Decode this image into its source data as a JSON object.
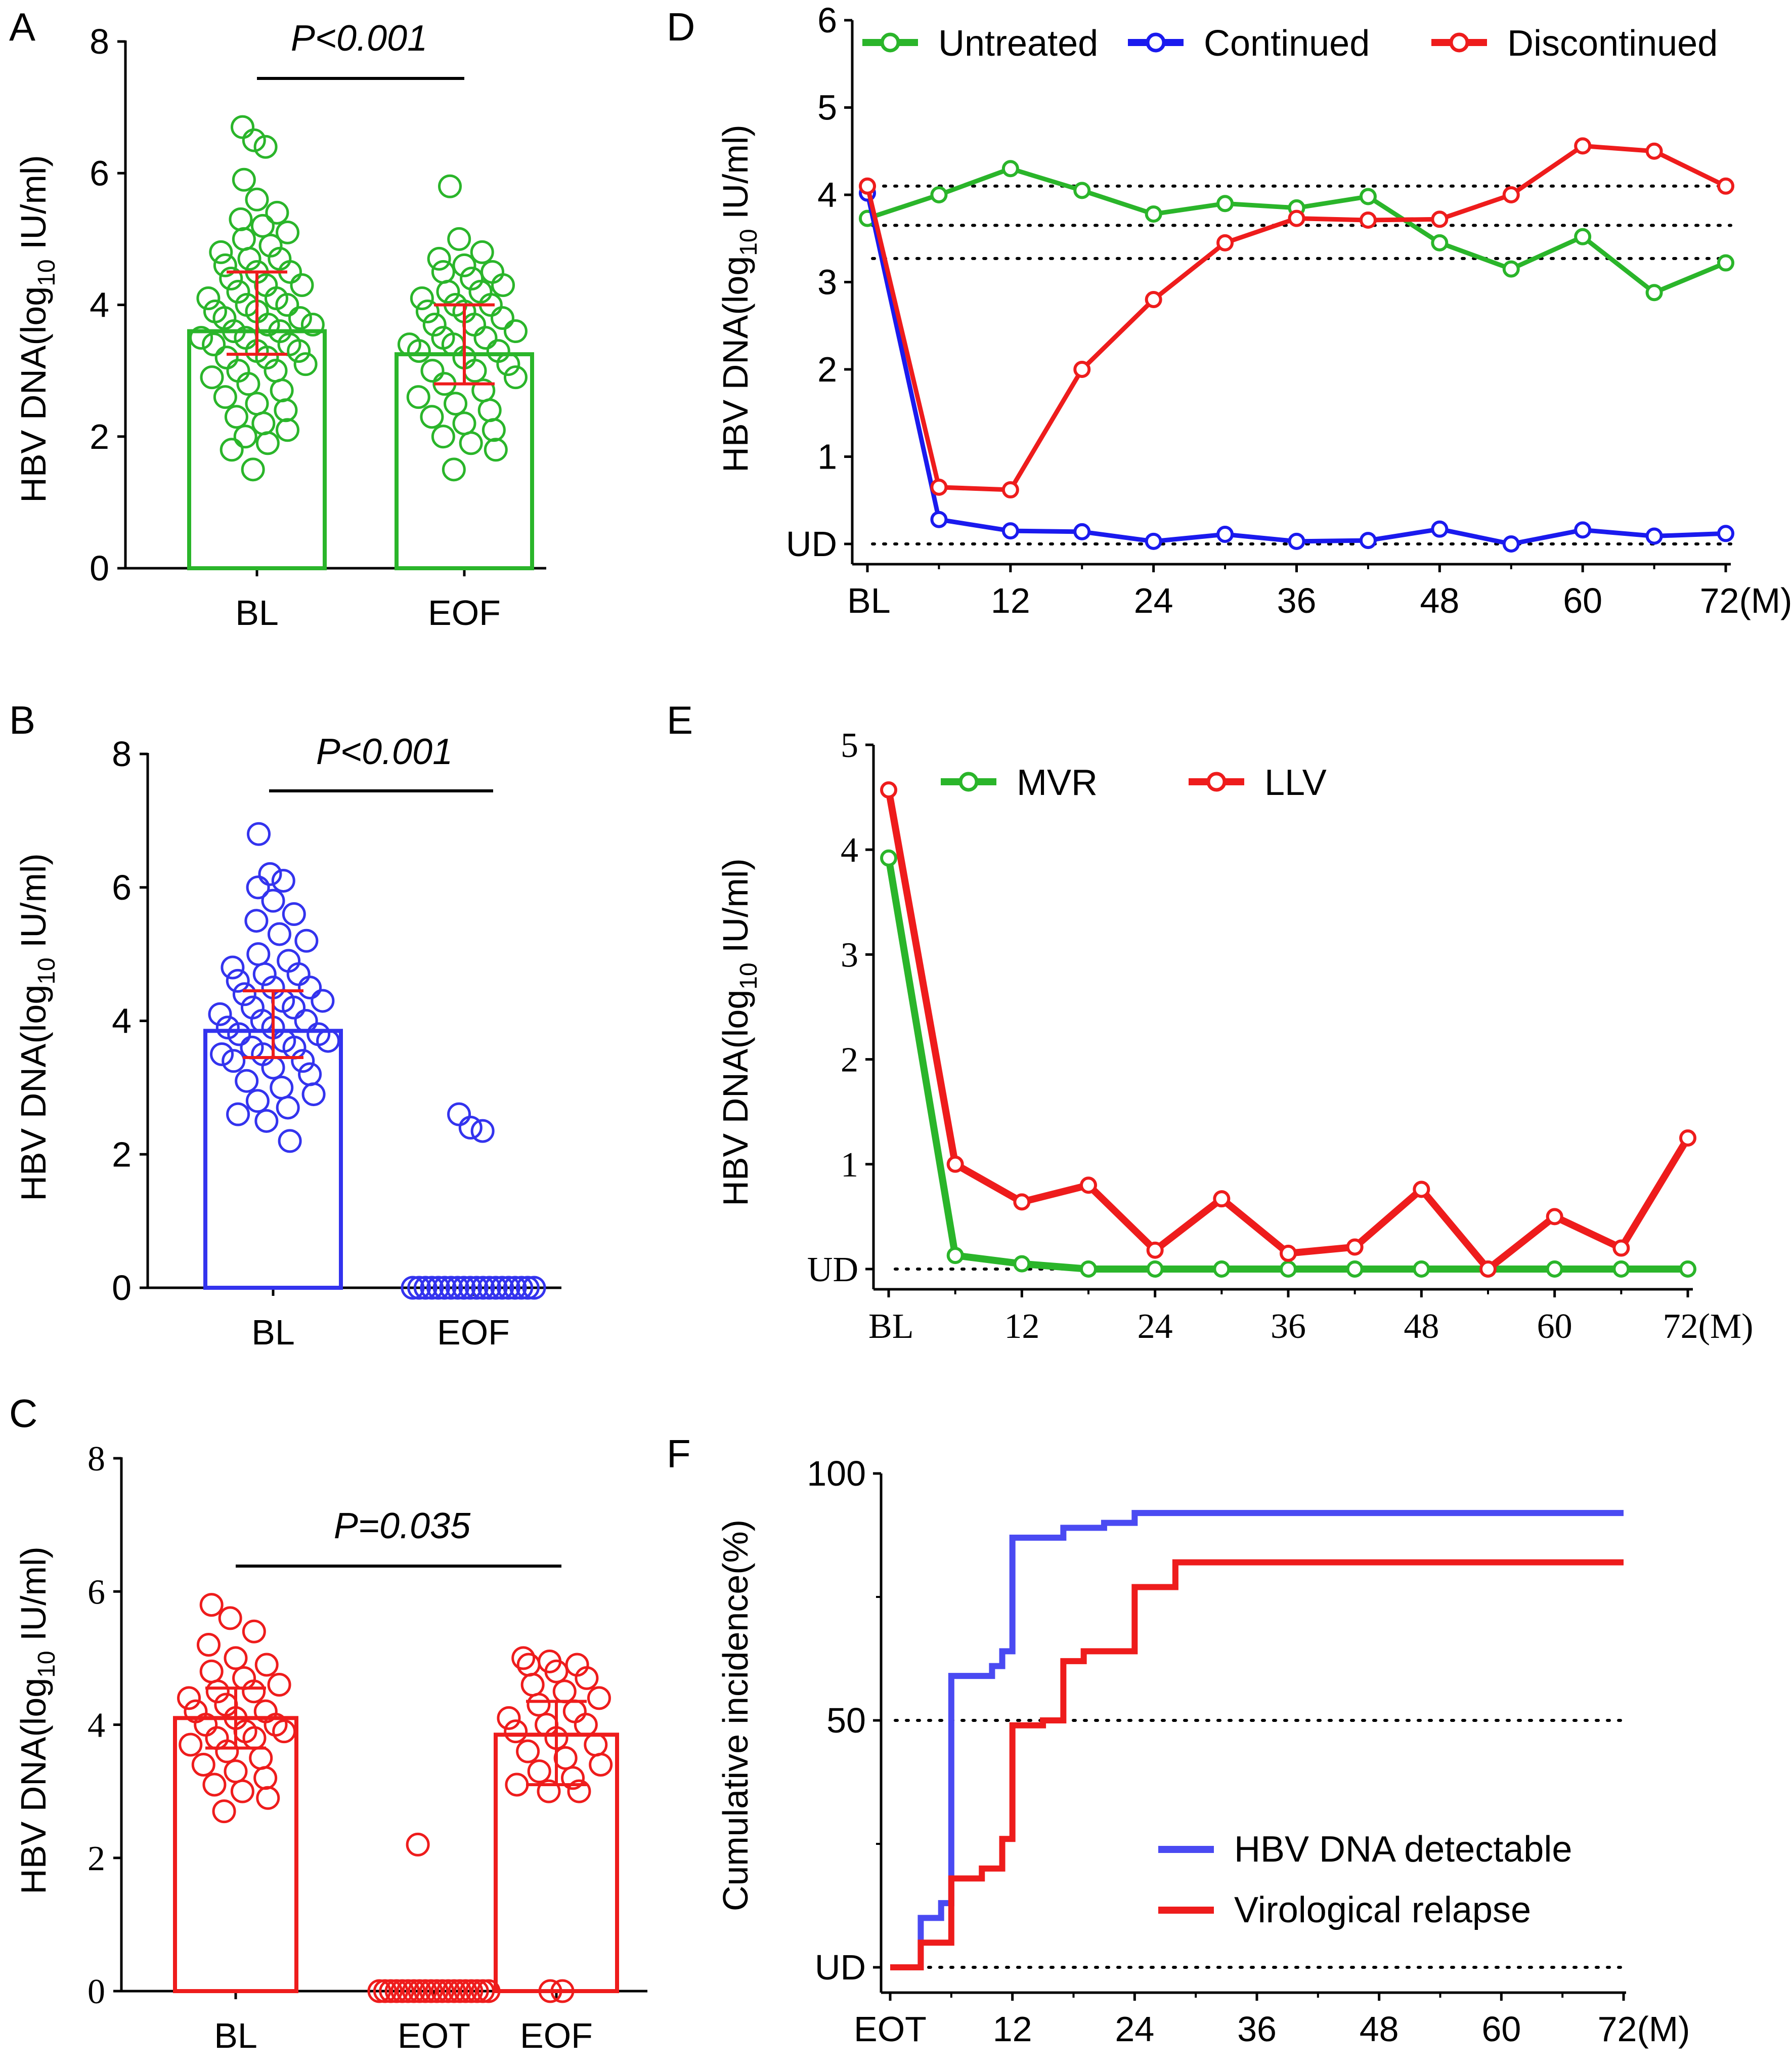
{
  "chart_data": [
    {
      "panel": "A",
      "type": "scatter",
      "ylabel": "HBV DNA(log10 IU/ml)",
      "ylim": [
        0,
        8
      ],
      "yticks": [
        0,
        2,
        4,
        6,
        8
      ],
      "categories": [
        "BL",
        "EOF"
      ],
      "pvalue": "P<0.001",
      "color": "#2ab52a",
      "bars": [
        3.6,
        3.25
      ],
      "error": [
        [
          3.25,
          4.5
        ],
        [
          2.8,
          4.0
        ]
      ],
      "points": [
        [
          6.7,
          6.5,
          6.4,
          5.9,
          5.6,
          5.4,
          5.3,
          5.2,
          5.1,
          5.0,
          4.9,
          4.8,
          4.7,
          4.7,
          4.6,
          4.5,
          4.5,
          4.4,
          4.3,
          4.3,
          4.2,
          4.1,
          4.1,
          4.0,
          4.0,
          3.9,
          3.9,
          3.8,
          3.8,
          3.7,
          3.7,
          3.6,
          3.6,
          3.5,
          3.5,
          3.4,
          3.4,
          3.3,
          3.3,
          3.2,
          3.2,
          3.1,
          3.0,
          3.0,
          2.9,
          2.8,
          2.7,
          2.6,
          2.5,
          2.4,
          2.3,
          2.2,
          2.1,
          2.0,
          1.9,
          1.8,
          1.5
        ],
        [
          5.8,
          5.0,
          4.8,
          4.7,
          4.6,
          4.5,
          4.5,
          4.4,
          4.3,
          4.2,
          4.2,
          4.1,
          4.0,
          4.0,
          3.9,
          3.9,
          3.8,
          3.7,
          3.7,
          3.6,
          3.5,
          3.5,
          3.4,
          3.4,
          3.3,
          3.3,
          3.2,
          3.1,
          3.0,
          3.0,
          2.9,
          2.8,
          2.7,
          2.6,
          2.5,
          2.4,
          2.3,
          2.2,
          2.1,
          2.0,
          1.9,
          1.8,
          1.5
        ]
      ]
    },
    {
      "panel": "B",
      "type": "scatter",
      "ylabel": "HBV DNA(log10 IU/ml)",
      "ylim": [
        0,
        8
      ],
      "yticks": [
        0,
        2,
        4,
        6,
        8
      ],
      "categories": [
        "BL",
        "EOF"
      ],
      "pvalue": "P<0.001",
      "color": "#3333ee",
      "bars": [
        3.85,
        0
      ],
      "error": [
        [
          3.45,
          4.45
        ],
        null
      ],
      "points": [
        [
          6.8,
          6.2,
          6.1,
          6.0,
          5.8,
          5.6,
          5.5,
          5.3,
          5.2,
          5.0,
          4.9,
          4.8,
          4.7,
          4.7,
          4.6,
          4.5,
          4.5,
          4.4,
          4.3,
          4.3,
          4.2,
          4.2,
          4.1,
          4.0,
          4.0,
          3.9,
          3.9,
          3.8,
          3.8,
          3.7,
          3.7,
          3.6,
          3.6,
          3.5,
          3.5,
          3.4,
          3.4,
          3.3,
          3.2,
          3.1,
          3.0,
          2.9,
          2.8,
          2.7,
          2.6,
          2.5,
          2.2
        ],
        [
          2.6,
          2.4,
          2.35,
          0,
          0,
          0,
          0,
          0,
          0,
          0,
          0,
          0,
          0,
          0,
          0,
          0,
          0,
          0,
          0,
          0,
          0,
          0,
          0
        ]
      ]
    },
    {
      "panel": "C",
      "type": "scatter",
      "ylabel": "HBV DNA(log10 IU/ml)",
      "ylim": [
        0,
        8
      ],
      "yticks": [
        0,
        2,
        4,
        6,
        8
      ],
      "categories": [
        "BL",
        "EOT",
        "EOF"
      ],
      "pvalue": "P=0.035",
      "color": "#ee1c1c",
      "bars": [
        4.1,
        0,
        3.85
      ],
      "error": [
        [
          3.65,
          4.55
        ],
        null,
        [
          3.1,
          4.35
        ]
      ],
      "points": [
        [
          5.8,
          5.6,
          5.4,
          5.2,
          5.0,
          4.9,
          4.8,
          4.7,
          4.6,
          4.5,
          4.5,
          4.4,
          4.3,
          4.2,
          4.2,
          4.1,
          4.0,
          4.0,
          3.9,
          3.9,
          3.8,
          3.8,
          3.7,
          3.6,
          3.5,
          3.4,
          3.3,
          3.2,
          3.1,
          3.0,
          2.9,
          2.7
        ],
        [
          2.2,
          0,
          0,
          0,
          0,
          0,
          0,
          0,
          0,
          0,
          0,
          0,
          0,
          0,
          0,
          0,
          0,
          0,
          0,
          0,
          0
        ],
        [
          5.0,
          4.95,
          4.9,
          4.9,
          4.8,
          4.7,
          4.6,
          4.5,
          4.4,
          4.3,
          4.2,
          4.1,
          4.0,
          4.0,
          3.9,
          3.8,
          3.7,
          3.6,
          3.5,
          3.4,
          3.3,
          3.2,
          3.1,
          3.0,
          3.0,
          0,
          0
        ]
      ]
    },
    {
      "panel": "D",
      "type": "line",
      "ylabel": "HBV DNA(log10 IU/ml)",
      "ylim": [
        0,
        6
      ],
      "ytick_values": [
        0,
        1,
        2,
        3,
        4,
        5,
        6
      ],
      "ytick_labels": [
        "UD",
        "1",
        "2",
        "3",
        "4",
        "5",
        "6"
      ],
      "x": [
        0,
        6,
        12,
        18,
        24,
        30,
        36,
        42,
        48,
        54,
        60,
        66,
        72
      ],
      "xlim": [
        0,
        72
      ],
      "xtick_values": [
        0,
        12,
        24,
        36,
        48,
        60,
        72
      ],
      "xtick_labels": [
        "BL",
        "12",
        "24",
        "36",
        "48",
        "60",
        "72(M)"
      ],
      "reference_lines": [
        0,
        3.27,
        3.65,
        4.1
      ],
      "series": [
        {
          "name": "Untreated",
          "color": "#2ab52a",
          "values": [
            3.73,
            4.0,
            4.3,
            4.05,
            3.78,
            3.9,
            3.85,
            3.98,
            3.45,
            3.15,
            3.52,
            2.88,
            3.22
          ]
        },
        {
          "name": "Continued",
          "color": "#1a1aee",
          "values": [
            4.02,
            0.28,
            0.15,
            0.14,
            0.03,
            0.11,
            0.03,
            0.04,
            0.17,
            0.0,
            0.16,
            0.09,
            0.12
          ]
        },
        {
          "name": "Discontinued",
          "color": "#ee1c1c",
          "values": [
            4.1,
            0.65,
            0.62,
            2.0,
            2.8,
            3.45,
            3.73,
            3.71,
            3.72,
            4.0,
            4.56,
            4.5,
            4.1
          ]
        }
      ]
    },
    {
      "panel": "E",
      "type": "line",
      "ylabel": "HBV DNA(log10 IU/ml)",
      "ylim": [
        0,
        5
      ],
      "ytick_values": [
        0,
        1,
        2,
        3,
        4,
        5
      ],
      "ytick_labels": [
        "UD",
        "1",
        "2",
        "3",
        "4",
        "5"
      ],
      "x": [
        0,
        6,
        12,
        18,
        24,
        30,
        36,
        42,
        48,
        54,
        60,
        66,
        72
      ],
      "xlim": [
        0,
        72
      ],
      "xtick_values": [
        0,
        12,
        24,
        36,
        48,
        60,
        72
      ],
      "xtick_labels": [
        "BL",
        "12",
        "24",
        "36",
        "48",
        "60",
        "72(M)"
      ],
      "reference_lines": [
        0
      ],
      "series": [
        {
          "name": "MVR",
          "color": "#2ab52a",
          "values": [
            3.92,
            0.13,
            0.05,
            0.0,
            0.0,
            0.0,
            0.0,
            0.0,
            0.0,
            0.0,
            0.0,
            0.0,
            0.0
          ]
        },
        {
          "name": "LLV",
          "color": "#ee1c1c",
          "values": [
            4.57,
            1.0,
            0.64,
            0.8,
            0.18,
            0.67,
            0.15,
            0.21,
            0.76,
            0.0,
            0.5,
            0.2,
            1.25
          ]
        }
      ]
    },
    {
      "panel": "F",
      "type": "step",
      "ylabel": "Cumulative incidence(%)",
      "ylim": [
        0,
        100
      ],
      "ytick_values": [
        0,
        50,
        100
      ],
      "ytick_labels": [
        "UD",
        "50",
        "100"
      ],
      "xlim": [
        0,
        72
      ],
      "xtick_values": [
        0,
        12,
        24,
        36,
        48,
        60,
        72
      ],
      "xtick_labels": [
        "EOT",
        "12",
        "24",
        "36",
        "48",
        "60",
        "72(M)"
      ],
      "reference_lines": [
        0,
        50
      ],
      "series": [
        {
          "name": "HBV DNA detectable",
          "color": "#4a4af2",
          "steps": [
            [
              0,
              0
            ],
            [
              3,
              10
            ],
            [
              5,
              13
            ],
            [
              6,
              59
            ],
            [
              10,
              61
            ],
            [
              11,
              64
            ],
            [
              12,
              87
            ],
            [
              17,
              89
            ],
            [
              21,
              90
            ],
            [
              24,
              92
            ],
            [
              72,
              92
            ]
          ]
        },
        {
          "name": "Virological relapse",
          "color": "#ee1c1c",
          "steps": [
            [
              0,
              0
            ],
            [
              3,
              5
            ],
            [
              6,
              18
            ],
            [
              8,
              18
            ],
            [
              9,
              20
            ],
            [
              11,
              26
            ],
            [
              12,
              49
            ],
            [
              15,
              50
            ],
            [
              17,
              62
            ],
            [
              19,
              64
            ],
            [
              21,
              64
            ],
            [
              24,
              77
            ],
            [
              28,
              82
            ],
            [
              72,
              82
            ]
          ]
        }
      ]
    }
  ]
}
